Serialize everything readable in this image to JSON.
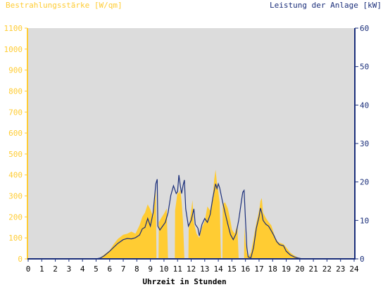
{
  "chart_data": {
    "type": "area",
    "left_axis_title": "Bestrahlungsstärke [W/qm]",
    "right_axis_title": "Leistung der Anlage [kW]",
    "xlabel": "Uhrzeit in Stunden",
    "xlim": [
      0,
      24
    ],
    "ylim_left": [
      0,
      1100
    ],
    "ylim_right": [
      0,
      60
    ],
    "x_ticks": [
      "0",
      "1",
      "2",
      "3",
      "4",
      "5",
      "6",
      "7",
      "8",
      "9",
      "10",
      "11",
      "12",
      "13",
      "14",
      "15",
      "16",
      "17",
      "18",
      "19",
      "20",
      "21",
      "22",
      "23",
      "24"
    ],
    "y_ticks_left": [
      "0",
      "100",
      "200",
      "300",
      "400",
      "500",
      "600",
      "700",
      "800",
      "900",
      "1000",
      "1100"
    ],
    "y_ticks_right": [
      "0",
      "10",
      "20",
      "30",
      "40",
      "50",
      "60"
    ],
    "colors": {
      "plot_background": "#dcdcdc",
      "irradiance": "#ffcc33",
      "power": "#1a2e7a",
      "left_axis": "#ffcc33",
      "right_axis": "#1a2e7a"
    },
    "series": [
      {
        "name": "Bestrahlungsstärke [W/qm]",
        "axis": "left",
        "style": "filled-area",
        "points": [
          [
            0,
            0
          ],
          [
            5.0,
            0
          ],
          [
            5.3,
            5
          ],
          [
            5.6,
            20
          ],
          [
            6.0,
            40
          ],
          [
            6.3,
            70
          ],
          [
            6.6,
            95
          ],
          [
            7.0,
            115
          ],
          [
            7.3,
            120
          ],
          [
            7.6,
            130
          ],
          [
            7.9,
            120
          ],
          [
            8.2,
            160
          ],
          [
            8.4,
            200
          ],
          [
            8.6,
            220
          ],
          [
            8.8,
            260
          ],
          [
            9.0,
            235
          ],
          [
            9.2,
            200
          ],
          [
            9.4,
            330
          ],
          [
            9.45,
            0
          ],
          [
            9.6,
            0
          ],
          [
            9.62,
            175
          ],
          [
            9.8,
            195
          ],
          [
            10.0,
            215
          ],
          [
            10.2,
            240
          ],
          [
            10.3,
            0
          ],
          [
            10.8,
            0
          ],
          [
            10.82,
            230
          ],
          [
            11.0,
            320
          ],
          [
            11.1,
            310
          ],
          [
            11.2,
            330
          ],
          [
            11.3,
            270
          ],
          [
            11.4,
            180
          ],
          [
            11.5,
            0
          ],
          [
            11.8,
            0
          ],
          [
            11.82,
            140
          ],
          [
            12.0,
            230
          ],
          [
            12.1,
            280
          ],
          [
            12.2,
            170
          ],
          [
            12.4,
            120
          ],
          [
            12.6,
            100
          ],
          [
            12.8,
            150
          ],
          [
            13.0,
            180
          ],
          [
            13.2,
            250
          ],
          [
            13.4,
            230
          ],
          [
            13.6,
            300
          ],
          [
            13.7,
            380
          ],
          [
            13.8,
            425
          ],
          [
            13.9,
            360
          ],
          [
            14.0,
            320
          ],
          [
            14.1,
            270
          ],
          [
            14.2,
            0
          ],
          [
            14.3,
            0
          ],
          [
            14.32,
            260
          ],
          [
            14.5,
            270
          ],
          [
            14.7,
            240
          ],
          [
            14.9,
            180
          ],
          [
            15.0,
            140
          ],
          [
            15.2,
            120
          ],
          [
            15.4,
            160
          ],
          [
            15.5,
            0
          ],
          [
            15.9,
            0
          ],
          [
            15.92,
            150
          ],
          [
            16.0,
            80
          ],
          [
            16.1,
            30
          ],
          [
            16.2,
            10
          ],
          [
            16.4,
            30
          ],
          [
            16.6,
            100
          ],
          [
            16.8,
            170
          ],
          [
            17.0,
            230
          ],
          [
            17.1,
            275
          ],
          [
            17.2,
            290
          ],
          [
            17.3,
            220
          ],
          [
            17.5,
            195
          ],
          [
            17.7,
            175
          ],
          [
            17.9,
            160
          ],
          [
            18.0,
            140
          ],
          [
            18.2,
            100
          ],
          [
            18.4,
            80
          ],
          [
            18.6,
            75
          ],
          [
            18.8,
            70
          ],
          [
            19.0,
            55
          ],
          [
            19.3,
            30
          ],
          [
            19.6,
            15
          ],
          [
            19.9,
            5
          ],
          [
            20.2,
            0
          ],
          [
            24,
            0
          ]
        ]
      },
      {
        "name": "Leistung der Anlage [kW]",
        "axis": "right",
        "style": "line",
        "points": [
          [
            0,
            0
          ],
          [
            5.0,
            0
          ],
          [
            5.3,
            0.2
          ],
          [
            5.6,
            0.8
          ],
          [
            6.0,
            2
          ],
          [
            6.3,
            3
          ],
          [
            6.6,
            4
          ],
          [
            7.0,
            5
          ],
          [
            7.3,
            5.3
          ],
          [
            7.6,
            5.2
          ],
          [
            7.9,
            5.5
          ],
          [
            8.2,
            6.2
          ],
          [
            8.4,
            7.8
          ],
          [
            8.6,
            8.2
          ],
          [
            8.8,
            10.5
          ],
          [
            9.0,
            8.5
          ],
          [
            9.2,
            12
          ],
          [
            9.4,
            19.5
          ],
          [
            9.5,
            20.7
          ],
          [
            9.55,
            8.5
          ],
          [
            9.7,
            7.5
          ],
          [
            9.9,
            8.5
          ],
          [
            10.1,
            9.5
          ],
          [
            10.3,
            12
          ],
          [
            10.5,
            16.5
          ],
          [
            10.7,
            19
          ],
          [
            10.9,
            17
          ],
          [
            11.0,
            17.5
          ],
          [
            11.1,
            21.8
          ],
          [
            11.2,
            19
          ],
          [
            11.3,
            17
          ],
          [
            11.4,
            19
          ],
          [
            11.5,
            20.5
          ],
          [
            11.6,
            13
          ],
          [
            11.8,
            8.5
          ],
          [
            12.0,
            10
          ],
          [
            12.2,
            13
          ],
          [
            12.3,
            9
          ],
          [
            12.5,
            8
          ],
          [
            12.6,
            6
          ],
          [
            12.8,
            9
          ],
          [
            13.0,
            10.5
          ],
          [
            13.2,
            9.5
          ],
          [
            13.4,
            11.5
          ],
          [
            13.6,
            16
          ],
          [
            13.8,
            19.5
          ],
          [
            13.9,
            18.3
          ],
          [
            14.0,
            19.5
          ],
          [
            14.1,
            18.5
          ],
          [
            14.3,
            15
          ],
          [
            14.5,
            12
          ],
          [
            14.7,
            9
          ],
          [
            14.9,
            6.3
          ],
          [
            15.1,
            5
          ],
          [
            15.3,
            6.5
          ],
          [
            15.5,
            10
          ],
          [
            15.7,
            15
          ],
          [
            15.8,
            17.3
          ],
          [
            15.9,
            17.8
          ],
          [
            16.0,
            10
          ],
          [
            16.1,
            3
          ],
          [
            16.2,
            0.5
          ],
          [
            16.4,
            0.3
          ],
          [
            16.6,
            3
          ],
          [
            16.8,
            8
          ],
          [
            17.0,
            11
          ],
          [
            17.1,
            13.2
          ],
          [
            17.2,
            12
          ],
          [
            17.3,
            10
          ],
          [
            17.5,
            9
          ],
          [
            17.7,
            8.5
          ],
          [
            17.9,
            7.3
          ],
          [
            18.1,
            6
          ],
          [
            18.3,
            4.5
          ],
          [
            18.5,
            3.7
          ],
          [
            18.8,
            3.4
          ],
          [
            19.0,
            2
          ],
          [
            19.3,
            1
          ],
          [
            19.6,
            0.5
          ],
          [
            19.9,
            0.2
          ],
          [
            20.2,
            0
          ],
          [
            24,
            0
          ]
        ]
      }
    ]
  }
}
